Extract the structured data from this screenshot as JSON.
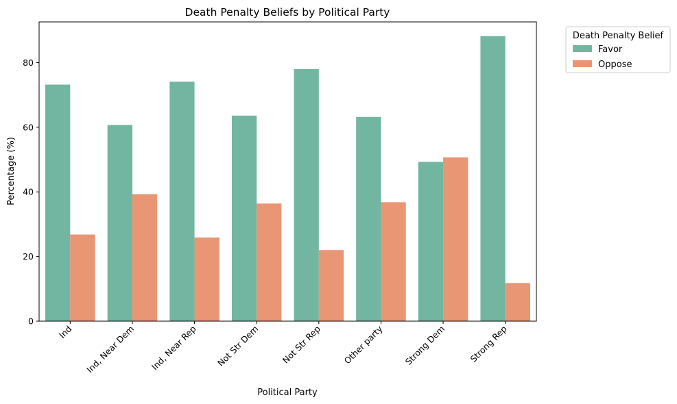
{
  "chart_data": {
    "type": "bar",
    "title": "Death Penalty Beliefs by Political Party",
    "xlabel": "Political Party",
    "ylabel": "Percentage (%)",
    "categories": [
      "Ind",
      "Ind, Near Dem",
      "Ind, Near Rep",
      "Not Str Dem",
      "Not Str Rep",
      "Other party",
      "Strong Dem",
      "Strong Rep"
    ],
    "series": [
      {
        "name": "Favor",
        "values": [
          73.2,
          60.7,
          74.1,
          63.6,
          78.0,
          63.2,
          49.3,
          88.2
        ]
      },
      {
        "name": "Oppose",
        "values": [
          26.8,
          39.3,
          25.9,
          36.4,
          22.0,
          36.8,
          50.7,
          11.8
        ]
      }
    ],
    "ylim": [
      0,
      92.6
    ],
    "yticks": [
      0,
      20,
      40,
      60,
      80
    ],
    "grid": false,
    "legend": {
      "title": "Death Penalty Belief",
      "placement": "outside-upper-right"
    },
    "colors": {
      "Favor": "#72b6a1",
      "Oppose": "#e99675"
    },
    "xtick_rotation": "45deg"
  }
}
